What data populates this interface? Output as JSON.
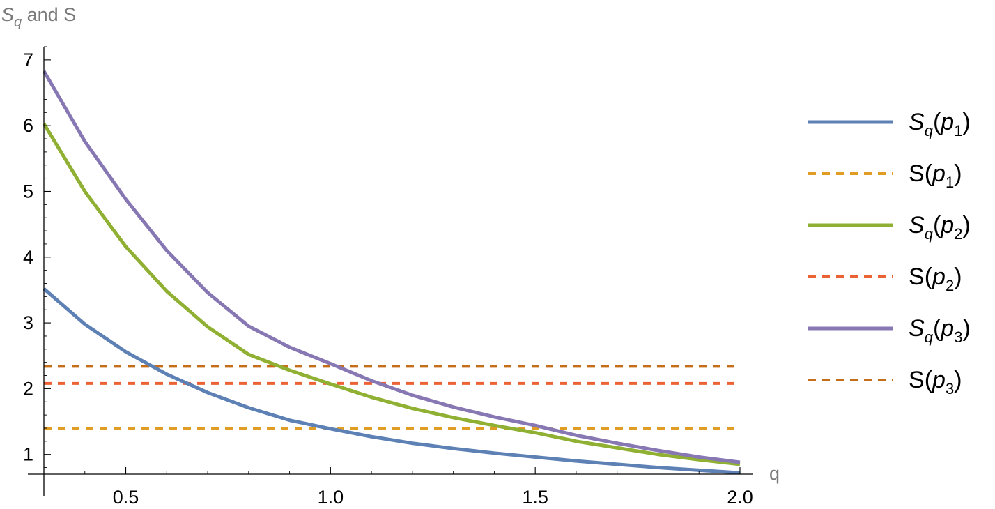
{
  "chart_data": {
    "type": "line",
    "title": "",
    "xlabel": "q",
    "ylabel": {
      "main": "S",
      "sub": "q",
      "rest": " and S"
    },
    "xlim": [
      0.3,
      2.0
    ],
    "ylim": [
      0.7,
      7.2
    ],
    "x_ticks": [
      {
        "value": 0.5,
        "label": "0.5"
      },
      {
        "value": 1.0,
        "label": "1.0"
      },
      {
        "value": 1.5,
        "label": "1.5"
      },
      {
        "value": 2.0,
        "label": "2.0"
      }
    ],
    "y_ticks": [
      {
        "value": 1,
        "label": "1"
      },
      {
        "value": 2,
        "label": "2"
      },
      {
        "value": 3,
        "label": "3"
      },
      {
        "value": 4,
        "label": "4"
      },
      {
        "value": 5,
        "label": "5"
      },
      {
        "value": 6,
        "label": "6"
      },
      {
        "value": 7,
        "label": "7"
      }
    ],
    "grid": false,
    "legend_position": "right",
    "series": [
      {
        "name": "S_q(p_1)",
        "label_main": "S",
        "label_sub": "q",
        "label_arg": "p",
        "label_arg_sub": "1",
        "style": "solid",
        "color": "#5E81B5",
        "x": [
          0.3,
          0.4,
          0.5,
          0.6,
          0.7,
          0.8,
          0.9,
          1.0,
          1.1,
          1.2,
          1.3,
          1.4,
          1.5,
          1.6,
          1.7,
          1.8,
          1.9,
          2.0
        ],
        "y": [
          3.52,
          2.98,
          2.56,
          2.22,
          1.94,
          1.71,
          1.52,
          1.39,
          1.27,
          1.17,
          1.09,
          1.02,
          0.96,
          0.9,
          0.85,
          0.8,
          0.76,
          0.72
        ]
      },
      {
        "name": "S(p_1)",
        "label_main": "S",
        "label_sub": "",
        "label_arg": "p",
        "label_arg_sub": "1",
        "style": "dashed",
        "color": "#E19C24",
        "x": [
          0.3,
          2.0
        ],
        "y": [
          1.39,
          1.39
        ]
      },
      {
        "name": "S_q(p_2)",
        "label_main": "S",
        "label_sub": "q",
        "label_arg": "p",
        "label_arg_sub": "2",
        "style": "solid",
        "color": "#8FB032",
        "x": [
          0.3,
          0.4,
          0.5,
          0.6,
          0.7,
          0.8,
          0.9,
          1.0,
          1.1,
          1.2,
          1.3,
          1.4,
          1.5,
          1.6,
          1.7,
          1.8,
          1.9,
          2.0
        ],
        "y": [
          6.03,
          5.0,
          4.16,
          3.48,
          2.94,
          2.52,
          2.28,
          2.07,
          1.87,
          1.7,
          1.56,
          1.44,
          1.33,
          1.2,
          1.1,
          1.0,
          0.92,
          0.85
        ]
      },
      {
        "name": "S(p_2)",
        "label_main": "S",
        "label_sub": "",
        "label_arg": "p",
        "label_arg_sub": "2",
        "style": "dashed",
        "color": "#EB6235",
        "x": [
          0.3,
          2.0
        ],
        "y": [
          2.08,
          2.08
        ]
      },
      {
        "name": "S_q(p_3)",
        "label_main": "S",
        "label_sub": "q",
        "label_arg": "p",
        "label_arg_sub": "3",
        "style": "solid",
        "color": "#8778B3",
        "x": [
          0.3,
          0.4,
          0.5,
          0.6,
          0.7,
          0.8,
          0.9,
          1.0,
          1.1,
          1.2,
          1.3,
          1.4,
          1.5,
          1.6,
          1.7,
          1.8,
          1.9,
          2.0
        ],
        "y": [
          6.83,
          5.76,
          4.88,
          4.1,
          3.46,
          2.95,
          2.63,
          2.38,
          2.12,
          1.9,
          1.72,
          1.57,
          1.44,
          1.29,
          1.17,
          1.06,
          0.96,
          0.88
        ]
      },
      {
        "name": "S(p_3)",
        "label_main": "S",
        "label_sub": "",
        "label_arg": "p",
        "label_arg_sub": "3",
        "style": "dashed",
        "color": "#C56E1A",
        "x": [
          0.3,
          2.0
        ],
        "y": [
          2.34,
          2.34
        ]
      }
    ]
  }
}
